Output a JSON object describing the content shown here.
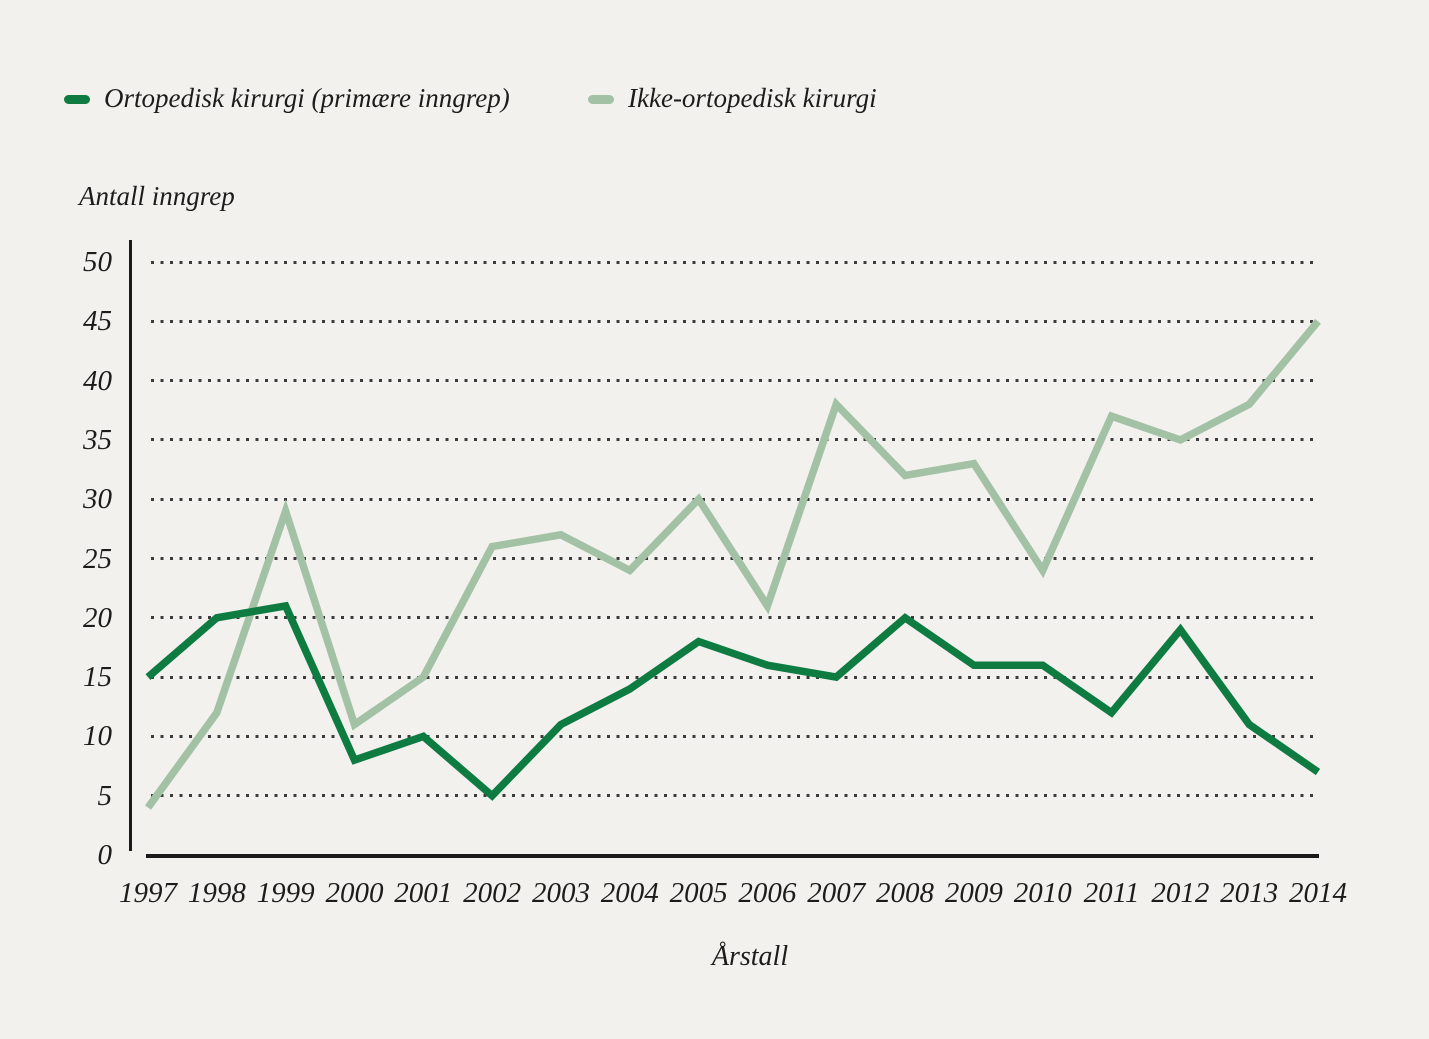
{
  "chart_data": {
    "type": "line",
    "title": "",
    "xlabel": "Årstall",
    "ylabel": "Antall inngrep",
    "x": [
      1997,
      1998,
      1999,
      2000,
      2001,
      2002,
      2003,
      2004,
      2005,
      2006,
      2007,
      2008,
      2009,
      2010,
      2011,
      2012,
      2013,
      2014
    ],
    "series": [
      {
        "name": "Ortopedisk kirurgi (primære inngrep)",
        "color": "#0e7b41",
        "values": [
          15,
          20,
          21,
          8,
          10,
          5,
          11,
          14,
          18,
          16,
          15,
          20,
          16,
          16,
          12,
          19,
          11,
          7
        ]
      },
      {
        "name": "Ikke-ortopedisk kirurgi",
        "color": "#a3c2a5",
        "values": [
          4,
          12,
          29,
          11,
          15,
          26,
          27,
          24,
          30,
          21,
          38,
          32,
          33,
          24,
          37,
          35,
          38,
          45
        ]
      }
    ],
    "ylim": [
      0,
      50
    ],
    "yticks": [
      0,
      5,
      10,
      15,
      20,
      25,
      30,
      35,
      40,
      45,
      50
    ],
    "grid": "horizontal-dotted",
    "legend_position": "top-left",
    "background_color": "#f2f1ee",
    "axis_color": "#1a1a1a"
  }
}
